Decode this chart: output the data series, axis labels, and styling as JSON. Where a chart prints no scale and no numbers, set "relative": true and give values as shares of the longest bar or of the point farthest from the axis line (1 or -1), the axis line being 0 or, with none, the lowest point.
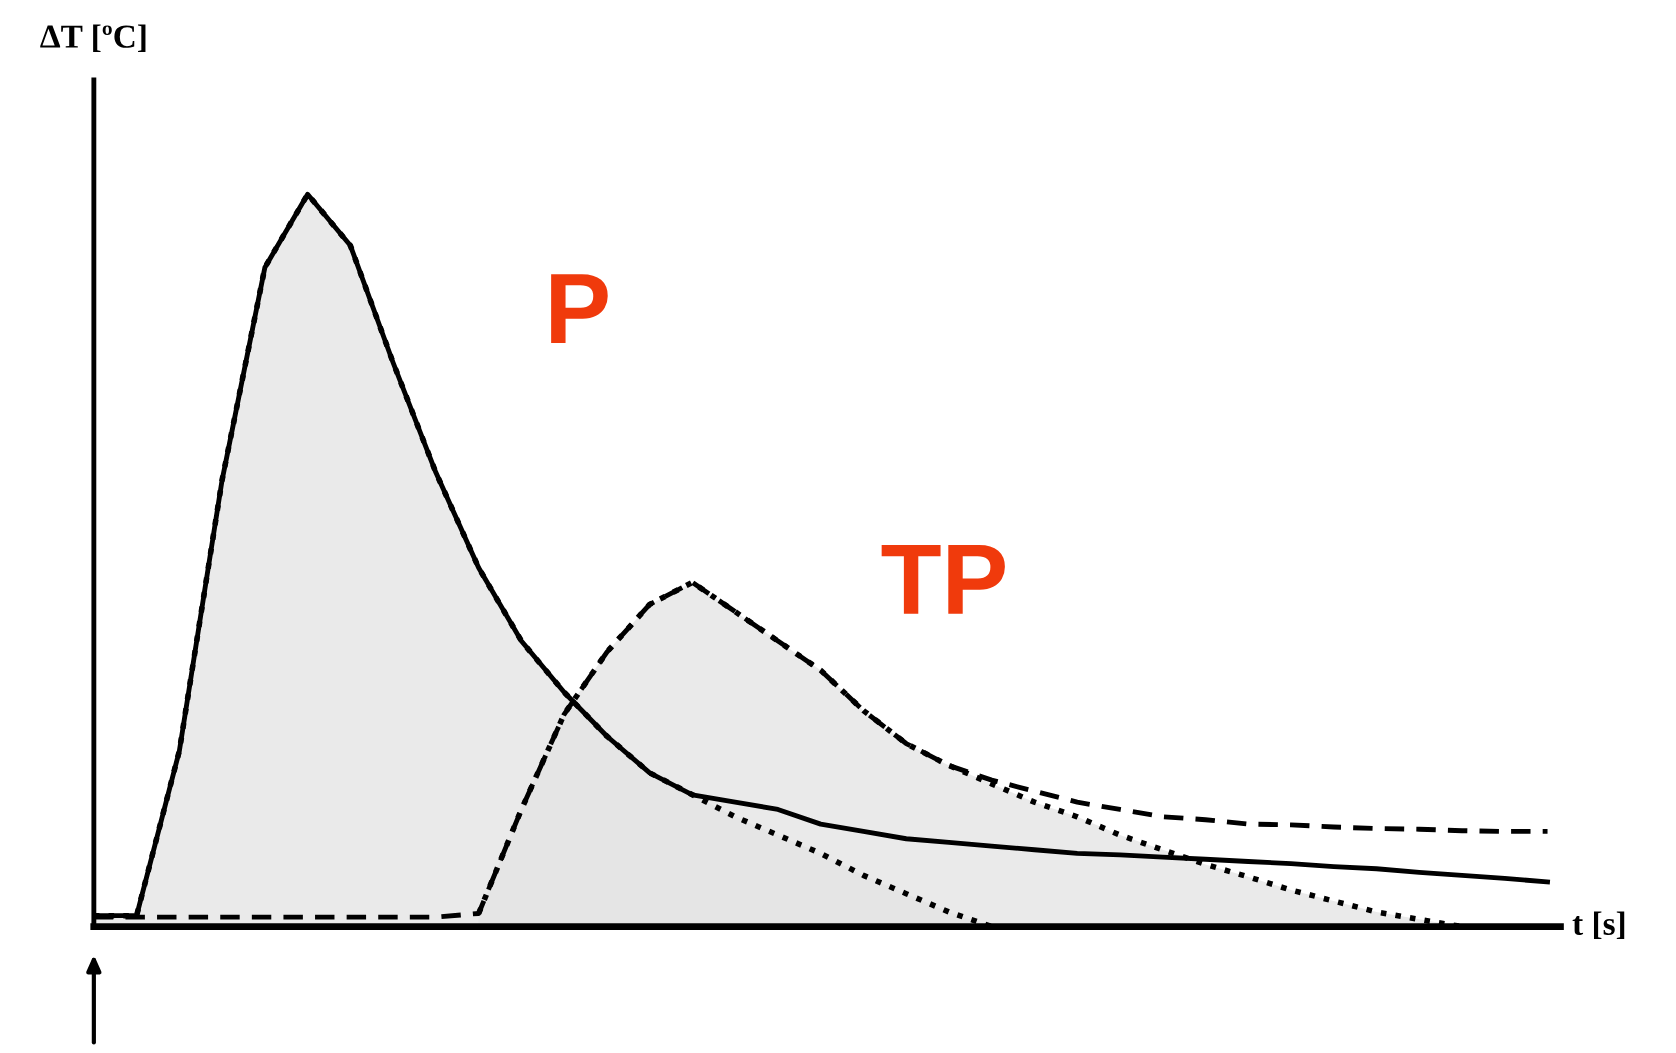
{
  "chart_data": {
    "type": "line",
    "relative": true,
    "xlabel": "t [s]",
    "ylabel": "ΔT [ºC]",
    "categories": [
      null,
      null,
      null,
      null,
      null,
      null,
      null,
      null,
      null,
      null,
      null,
      null,
      null,
      null,
      null,
      null,
      null,
      null,
      null,
      null,
      null,
      null,
      null,
      null,
      null,
      null,
      null,
      null,
      null,
      null,
      null,
      null,
      null,
      null,
      null
    ],
    "series": [
      {
        "type": "area",
        "color": "#e3e3e3",
        "line_style": "dotted",
        "values": [
          0.015,
          0.015,
          0.24,
          0.61,
          0.9,
          1.0,
          0.93,
          0.77,
          0.62,
          0.49,
          0.39,
          0.32,
          0.26,
          0.21,
          0.18,
          0.15,
          0.125,
          0.1,
          0.07,
          0.045,
          0.02,
          0.0,
          null,
          null,
          null,
          null,
          null,
          null,
          null,
          null,
          null,
          null,
          null,
          null,
          null
        ]
      },
      {
        "type": "area",
        "color": "#e3e3e3",
        "line_style": "dotted",
        "values": [
          null,
          null,
          null,
          null,
          null,
          null,
          null,
          null,
          null,
          0.018,
          0.16,
          0.29,
          0.375,
          0.44,
          0.47,
          0.43,
          0.39,
          0.35,
          0.295,
          0.25,
          0.22,
          0.195,
          0.17,
          0.15,
          0.125,
          0.105,
          0.085,
          0.068,
          0.05,
          0.035,
          0.02,
          0.01,
          0.0,
          null,
          null
        ]
      },
      {
        "color": "#000000",
        "line_style": "solid",
        "values": [
          0.015,
          0.015,
          0.24,
          0.61,
          0.9,
          1.0,
          0.93,
          0.77,
          0.62,
          0.49,
          0.39,
          0.32,
          0.26,
          0.21,
          0.18,
          0.17,
          0.16,
          0.14,
          0.13,
          0.12,
          0.115,
          0.11,
          0.105,
          0.1,
          0.098,
          0.095,
          0.092,
          0.089,
          0.086,
          0.082,
          0.079,
          0.074,
          0.07,
          0.066,
          0.061
        ]
      },
      {
        "color": "#000000",
        "line_style": "dashed",
        "values": [
          0.013,
          0.013,
          0.013,
          0.013,
          0.013,
          0.013,
          0.013,
          0.013,
          0.013,
          0.018,
          0.16,
          0.29,
          0.375,
          0.44,
          0.47,
          0.43,
          0.39,
          0.35,
          0.295,
          0.25,
          0.22,
          0.2,
          0.185,
          0.17,
          0.16,
          0.15,
          0.146,
          0.14,
          0.139,
          0.136,
          0.134,
          0.133,
          0.131,
          0.13,
          0.13
        ]
      }
    ],
    "annotations": [
      "P",
      "TP"
    ],
    "marker": "none"
  }
}
